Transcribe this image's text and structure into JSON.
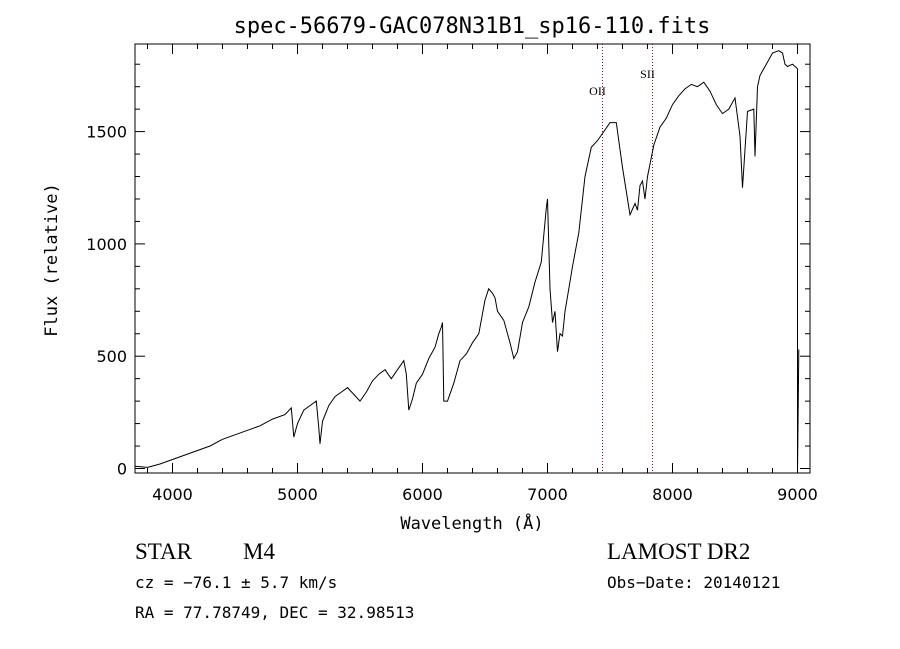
{
  "chart_data": {
    "type": "line",
    "title": "spec-56679-GAC078N31B1_sp16-110.fits",
    "xlabel": "Wavelength (Å)",
    "ylabel": "Flux (relative)",
    "xlim": [
      3700,
      9100
    ],
    "ylim": [
      -20,
      1890
    ],
    "xticks": [
      4000,
      5000,
      6000,
      7000,
      8000,
      9000
    ],
    "yticks": [
      0,
      500,
      1000,
      1500
    ],
    "grid": false,
    "lines": [
      {
        "label": "OII",
        "x": 7440
      },
      {
        "label": "SII",
        "x": 7840
      }
    ],
    "series": [
      {
        "x": [
          3700,
          3800,
          3900,
          4000,
          4100,
          4200,
          4300,
          4400,
          4500,
          4600,
          4700,
          4800,
          4900,
          4950,
          4970,
          5000,
          5050,
          5100,
          5150,
          5170,
          5180,
          5200,
          5250,
          5300,
          5350,
          5400,
          5450,
          5500,
          5550,
          5600,
          5650,
          5700,
          5750,
          5800,
          5850,
          5870,
          5890,
          5920,
          5950,
          6000,
          6050,
          6100,
          6130,
          6150,
          6160,
          6170,
          6200,
          6250,
          6300,
          6350,
          6400,
          6450,
          6500,
          6530,
          6560,
          6580,
          6600,
          6650,
          6700,
          6730,
          6760,
          6800,
          6850,
          6900,
          6950,
          6990,
          7000,
          7020,
          7040,
          7060,
          7080,
          7100,
          7120,
          7140,
          7170,
          7200,
          7250,
          7300,
          7350,
          7400,
          7450,
          7500,
          7550,
          7580,
          7600,
          7640,
          7660,
          7700,
          7720,
          7740,
          7760,
          7780,
          7800,
          7850,
          7900,
          7950,
          8000,
          8050,
          8100,
          8150,
          8200,
          8250,
          8300,
          8350,
          8400,
          8450,
          8500,
          8540,
          8560,
          8600,
          8650,
          8660,
          8680,
          8700,
          8750,
          8800,
          8850,
          8880,
          8900,
          8920,
          8960,
          9000,
          9000,
          9010
        ],
        "y": [
          10,
          5,
          20,
          40,
          60,
          80,
          100,
          130,
          150,
          170,
          190,
          220,
          240,
          270,
          140,
          200,
          260,
          280,
          300,
          180,
          110,
          210,
          280,
          320,
          340,
          360,
          330,
          300,
          340,
          390,
          420,
          440,
          400,
          440,
          480,
          420,
          260,
          310,
          380,
          420,
          490,
          540,
          600,
          630,
          650,
          300,
          300,
          380,
          480,
          510,
          560,
          600,
          750,
          800,
          780,
          760,
          700,
          660,
          560,
          490,
          520,
          650,
          720,
          830,
          920,
          1160,
          1200,
          800,
          650,
          700,
          520,
          600,
          590,
          700,
          800,
          900,
          1050,
          1300,
          1430,
          1460,
          1500,
          1540,
          1540,
          1420,
          1340,
          1200,
          1130,
          1180,
          1150,
          1260,
          1280,
          1200,
          1300,
          1440,
          1520,
          1560,
          1620,
          1660,
          1690,
          1710,
          1700,
          1720,
          1680,
          1620,
          1580,
          1600,
          1650,
          1480,
          1250,
          1590,
          1600,
          1390,
          1700,
          1750,
          1800,
          1850,
          1860,
          1850,
          1800,
          1790,
          1800,
          1780,
          -20,
          530
        ]
      }
    ]
  },
  "info": {
    "object_class": "STAR",
    "subclass": "M4",
    "survey": "LAMOST  DR2",
    "cz": "cz = −76.1 ± 5.7 km/s",
    "obs_date": "Obs−Date: 20140121",
    "coords": "RA =  77.78749, DEC =  32.98513"
  }
}
